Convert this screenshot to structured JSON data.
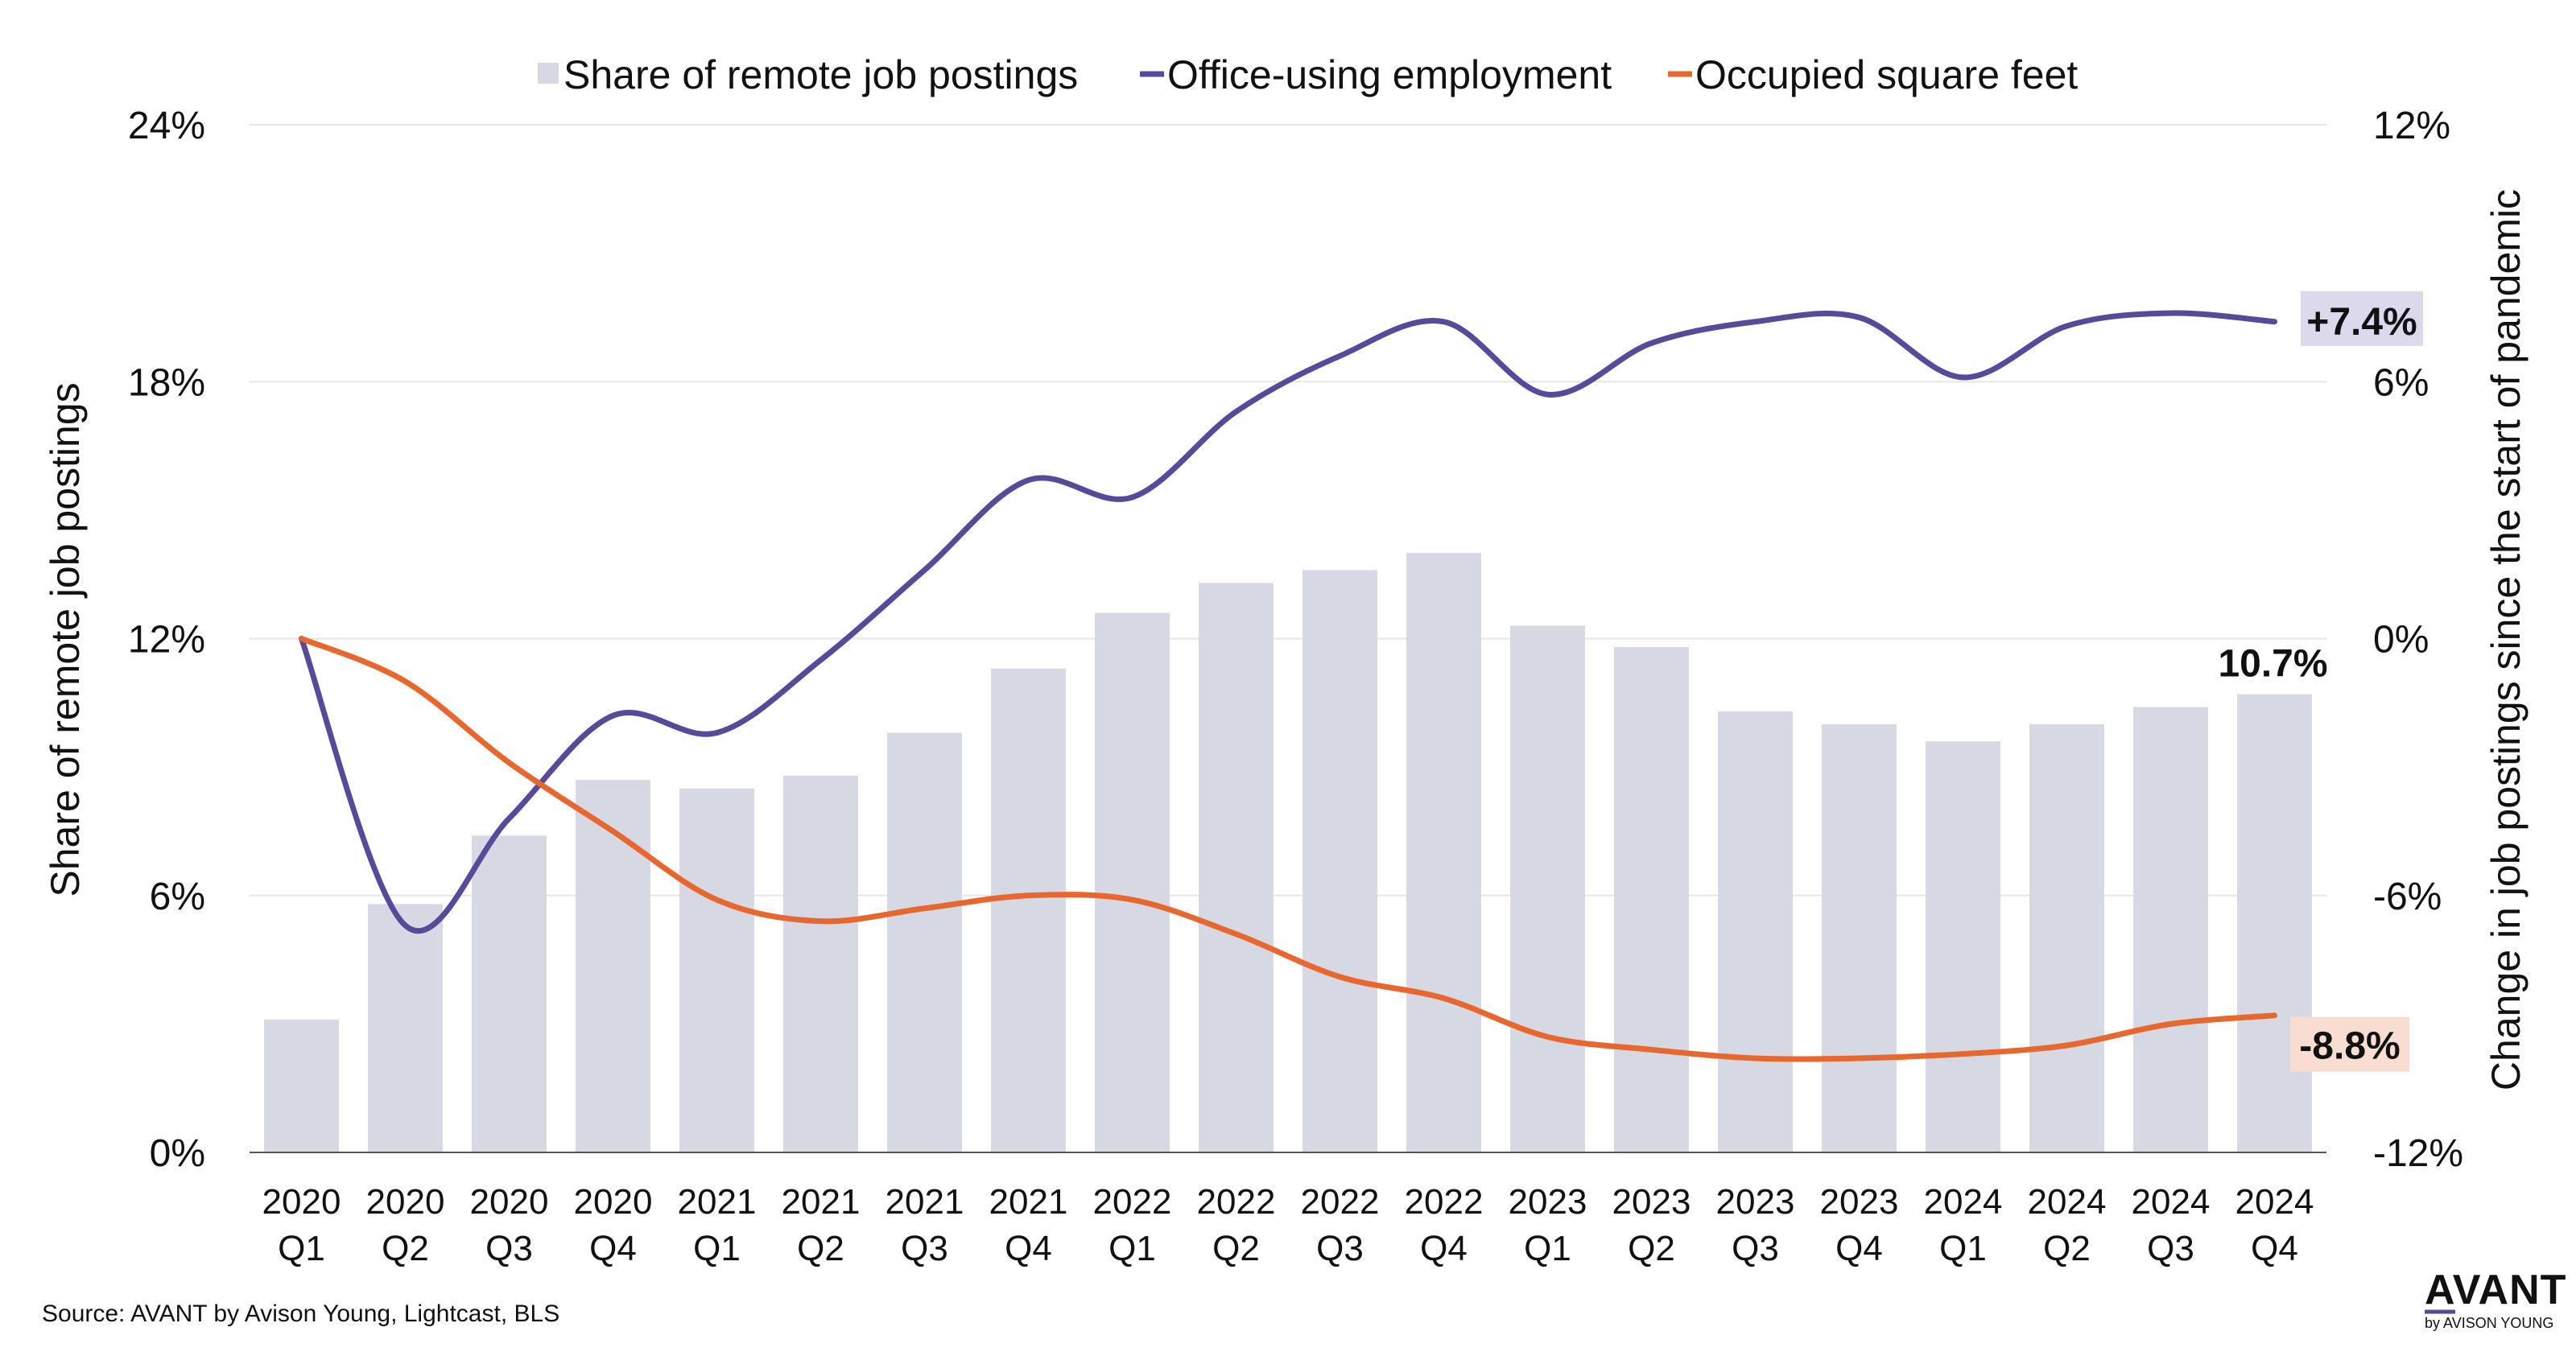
{
  "chart_data": {
    "type": "bar+line",
    "title": "",
    "categories": [
      "2020 Q1",
      "2020 Q2",
      "2020 Q3",
      "2020 Q4",
      "2021 Q1",
      "2021 Q2",
      "2021 Q3",
      "2021 Q4",
      "2022 Q1",
      "2022 Q2",
      "2022 Q3",
      "2022 Q4",
      "2023 Q1",
      "2023 Q2",
      "2023 Q3",
      "2023 Q4",
      "2024 Q1",
      "2024 Q2",
      "2024 Q3",
      "2024 Q4"
    ],
    "category_lines": [
      [
        "2020",
        "Q1"
      ],
      [
        "2020",
        "Q2"
      ],
      [
        "2020",
        "Q3"
      ],
      [
        "2020",
        "Q4"
      ],
      [
        "2021",
        "Q1"
      ],
      [
        "2021",
        "Q2"
      ],
      [
        "2021",
        "Q3"
      ],
      [
        "2021",
        "Q4"
      ],
      [
        "2022",
        "Q1"
      ],
      [
        "2022",
        "Q2"
      ],
      [
        "2022",
        "Q3"
      ],
      [
        "2022",
        "Q4"
      ],
      [
        "2023",
        "Q1"
      ],
      [
        "2023",
        "Q2"
      ],
      [
        "2023",
        "Q3"
      ],
      [
        "2023",
        "Q4"
      ],
      [
        "2024",
        "Q1"
      ],
      [
        "2024",
        "Q2"
      ],
      [
        "2024",
        "Q3"
      ],
      [
        "2024",
        "Q4"
      ]
    ],
    "series": [
      {
        "name": "Share of remote job postings",
        "type": "bar",
        "axis": "left",
        "color": "#d6d9e4",
        "values": [
          3.1,
          5.8,
          7.4,
          8.7,
          8.5,
          8.8,
          9.8,
          11.3,
          12.6,
          13.3,
          13.6,
          14.0,
          12.3,
          11.8,
          10.3,
          10.0,
          9.6,
          10.0,
          10.4,
          10.7
        ]
      },
      {
        "name": "Office-using employment",
        "type": "line",
        "axis": "right",
        "color": "#574a9a",
        "values": [
          0.0,
          -6.7,
          -4.2,
          -1.8,
          -2.2,
          -0.5,
          1.6,
          3.7,
          3.3,
          5.3,
          6.6,
          7.4,
          5.7,
          6.9,
          7.4,
          7.5,
          6.1,
          7.3,
          7.6,
          7.4
        ]
      },
      {
        "name": "Occupied square feet",
        "type": "line",
        "axis": "right",
        "color": "#e8672e",
        "values": [
          0.0,
          -1.0,
          -2.9,
          -4.5,
          -6.1,
          -6.6,
          -6.3,
          -6.0,
          -6.1,
          -6.9,
          -7.9,
          -8.4,
          -9.3,
          -9.6,
          -9.8,
          -9.8,
          -9.7,
          -9.5,
          -9.0,
          -8.8
        ]
      }
    ],
    "y_left": {
      "label": "Share of remote job postings",
      "ylim": [
        0,
        24
      ],
      "ticks": [
        "0%",
        "6%",
        "12%",
        "18%",
        "24%"
      ]
    },
    "y_right": {
      "label": "Change in job postings since the start of pandemic",
      "ylim": [
        -12,
        12
      ],
      "ticks": [
        "-12%",
        "-6%",
        "0%",
        "6%",
        "12%"
      ]
    },
    "end_labels": {
      "bar": "10.7%",
      "employment": "+7.4%",
      "sqft": "-8.8%"
    },
    "end_label_bg": {
      "employment": "#dcd9ec",
      "sqft": "#f8ddd0"
    },
    "legend": "top"
  },
  "source": "Source: AVANT by Avison Young, Lightcast, BLS",
  "logo": {
    "main": "AVANT",
    "sub": "by AVISON YOUNG",
    "accent": "#574a9a"
  }
}
